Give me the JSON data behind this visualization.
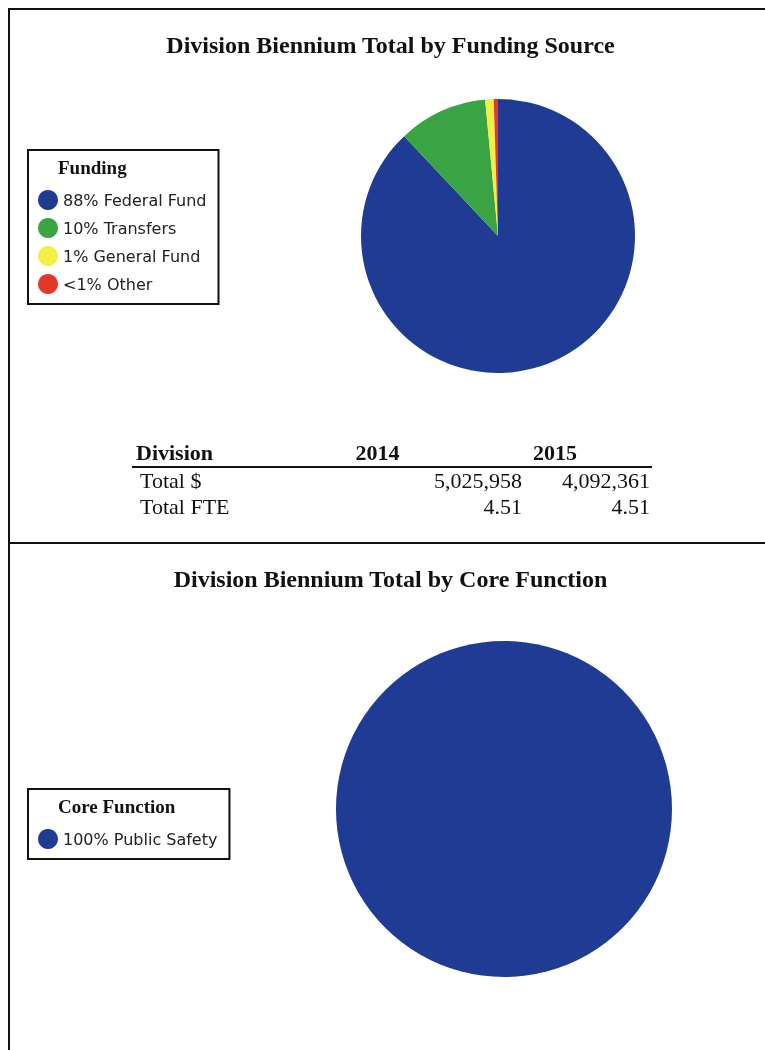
{
  "chart_data": [
    {
      "type": "pie",
      "title": "Division Biennium Total by Funding Source",
      "legend_title": "Funding",
      "legend": "left",
      "categories": [
        "88% Federal Fund",
        "10% Transfers",
        "1% General Fund",
        "<1% Other"
      ],
      "values": [
        88,
        10.5,
        1,
        0.5
      ],
      "colors": [
        "#1f3b94",
        "#3aa444",
        "#f2ef45",
        "#e23a2a"
      ]
    },
    {
      "type": "other",
      "annotations": [
        "Division",
        "2014",
        "2015",
        "Total $",
        "5,025,958",
        "4,092,361",
        "Total FTE",
        "4.51",
        "4.51"
      ]
    },
    {
      "type": "pie",
      "title": "Division Biennium Total by Core Function",
      "legend_title": "Core Function",
      "legend": "left",
      "categories": [
        "100% Public Safety"
      ],
      "values": [
        100
      ],
      "colors": [
        "#1f3b94"
      ]
    }
  ]
}
